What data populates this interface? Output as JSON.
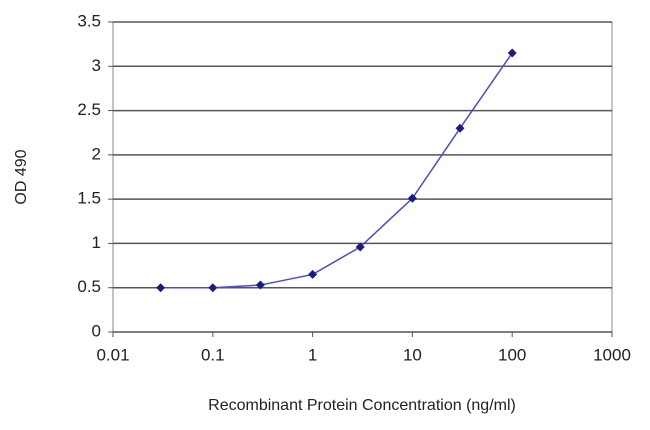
{
  "chart_data": {
    "type": "line",
    "x_label": "Recombinant Protein Concentration (ng/ml)",
    "y_label": "OD 490",
    "x": [
      0.03,
      0.1,
      0.3,
      1,
      3,
      10,
      30,
      100
    ],
    "series": [
      {
        "name": "OD 490",
        "color": "#4b4bc9",
        "marker_color": "#1c1c80",
        "values": [
          0.5,
          0.5,
          0.53,
          0.65,
          0.96,
          1.51,
          2.3,
          3.15
        ]
      }
    ],
    "xlim": [
      0.01,
      1000
    ],
    "xticks": [
      0.01,
      0.1,
      1,
      10,
      100,
      1000
    ],
    "x_log": true,
    "ylim": [
      0,
      3.5
    ],
    "yticks": [
      0,
      0.5,
      1,
      1.5,
      2,
      2.5,
      3,
      3.5
    ],
    "grid": true,
    "legend": false
  }
}
